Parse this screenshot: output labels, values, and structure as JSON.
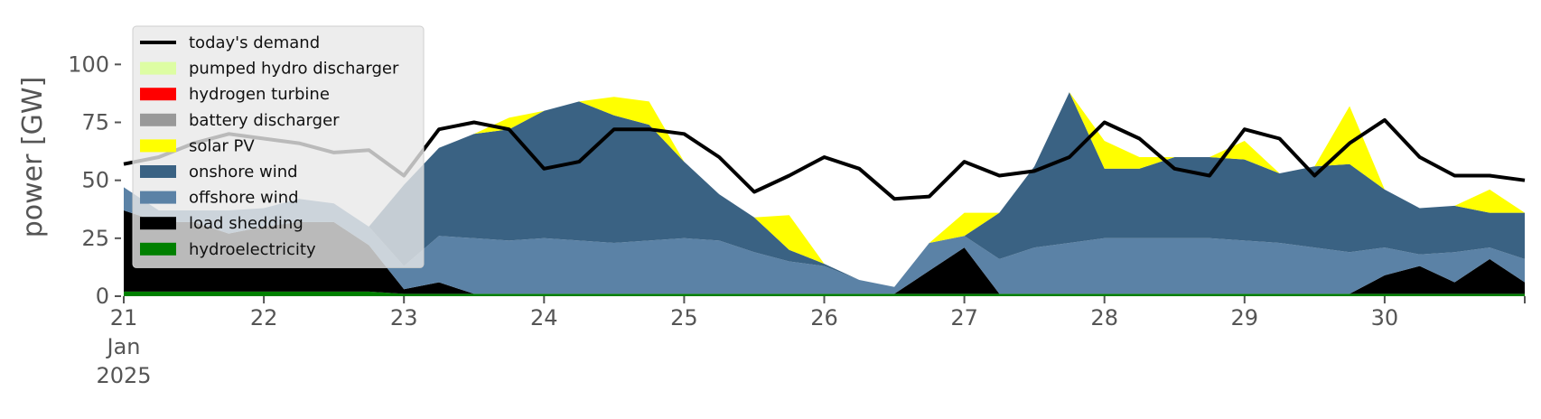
{
  "chart_data": {
    "type": "area",
    "stacked": true,
    "title": "",
    "xlabel": "",
    "ylabel": "power [GW]",
    "x_unit": "hours since 2025-01-21 00:00",
    "x": [
      0,
      6,
      12,
      18,
      24,
      30,
      36,
      42,
      48,
      54,
      60,
      66,
      72,
      78,
      84,
      90,
      96,
      102,
      108,
      114,
      120,
      126,
      132,
      138,
      144,
      150,
      156,
      162,
      168,
      174,
      180,
      186,
      192,
      198,
      204,
      210,
      216,
      222,
      228,
      234,
      240
    ],
    "xlim": [
      0,
      240
    ],
    "ylim": [
      0,
      120
    ],
    "x_ticks": [
      {
        "label": "21",
        "sub": [
          "Jan",
          "2025"
        ],
        "hour": 0
      },
      {
        "label": "22",
        "hour": 24
      },
      {
        "label": "23",
        "hour": 48
      },
      {
        "label": "24",
        "hour": 72
      },
      {
        "label": "25",
        "hour": 96
      },
      {
        "label": "26",
        "hour": 120
      },
      {
        "label": "27",
        "hour": 144
      },
      {
        "label": "28",
        "hour": 168
      },
      {
        "label": "29",
        "hour": 192
      },
      {
        "label": "30",
        "hour": 216
      }
    ],
    "y_ticks": [
      0,
      25,
      50,
      75,
      100
    ],
    "grid": false,
    "legend_position": "upper-left",
    "series": [
      {
        "name": "hydroelectricity",
        "color": "#008000",
        "values": [
          2,
          2,
          2,
          2,
          2,
          2,
          2,
          2,
          1,
          1,
          1,
          1,
          1,
          1,
          1,
          1,
          1,
          1,
          1,
          1,
          1,
          1,
          1,
          1,
          1,
          1,
          1,
          1,
          1,
          1,
          1,
          1,
          1,
          1,
          1,
          1,
          1,
          1,
          1,
          1,
          1
        ]
      },
      {
        "name": "load shedding",
        "color": "#000000",
        "values": [
          35,
          30,
          30,
          25,
          28,
          30,
          30,
          20,
          2,
          5,
          0,
          0,
          0,
          0,
          0,
          0,
          0,
          0,
          0,
          0,
          0,
          0,
          0,
          10,
          20,
          0,
          0,
          0,
          0,
          0,
          0,
          0,
          0,
          0,
          0,
          0,
          8,
          12,
          5,
          15,
          5
        ]
      },
      {
        "name": "offshore wind",
        "color": "#5b82a6",
        "values": [
          10,
          5,
          5,
          10,
          8,
          10,
          8,
          8,
          10,
          20,
          24,
          23,
          24,
          23,
          22,
          23,
          24,
          23,
          18,
          14,
          12,
          6,
          3,
          12,
          5,
          15,
          20,
          22,
          24,
          24,
          24,
          24,
          23,
          22,
          20,
          18,
          12,
          5,
          13,
          5,
          10
        ]
      },
      {
        "name": "onshore wind",
        "color": "#3a6283",
        "values": [
          0,
          0,
          0,
          0,
          0,
          0,
          0,
          0,
          35,
          38,
          45,
          48,
          55,
          60,
          55,
          50,
          33,
          20,
          15,
          5,
          1,
          0,
          0,
          0,
          0,
          20,
          35,
          65,
          30,
          30,
          35,
          35,
          35,
          30,
          35,
          38,
          25,
          20,
          20,
          15,
          20
        ]
      },
      {
        "name": "solar PV",
        "color": "#ffff00",
        "values": [
          0,
          0,
          0,
          0,
          0,
          0,
          0,
          0,
          0,
          0,
          0,
          5,
          0,
          0,
          8,
          10,
          0,
          0,
          0,
          15,
          0,
          0,
          0,
          0,
          10,
          0,
          0,
          0,
          12,
          5,
          0,
          0,
          8,
          0,
          0,
          25,
          0,
          0,
          0,
          10,
          0
        ]
      },
      {
        "name": "battery discharger",
        "color": "#999999",
        "values": [
          0,
          0,
          0,
          0,
          0,
          0,
          0,
          0,
          0,
          0,
          0,
          0,
          0,
          0,
          0,
          0,
          0,
          0,
          0,
          0,
          0,
          0,
          0,
          0,
          0,
          0,
          0,
          0,
          0,
          0,
          0,
          0,
          0,
          0,
          0,
          0,
          0,
          0,
          0,
          0,
          0
        ]
      },
      {
        "name": "hydrogen turbine",
        "color": "#ff0000",
        "values": [
          0,
          0,
          0,
          0,
          0,
          0,
          0,
          0,
          0,
          0,
          0,
          0,
          0,
          0,
          0,
          0,
          0,
          0,
          0,
          0,
          0,
          0,
          0,
          0,
          0,
          0,
          0,
          0,
          0,
          0,
          0,
          0,
          0,
          0,
          0,
          0,
          0,
          0,
          0,
          0,
          0
        ]
      },
      {
        "name": "pumped hydro discharger",
        "color": "#ddfda3",
        "values": [
          0,
          0,
          0,
          0,
          0,
          0,
          0,
          0,
          0,
          0,
          0,
          0,
          0,
          0,
          0,
          0,
          0,
          0,
          0,
          0,
          0,
          0,
          0,
          0,
          0,
          0,
          0,
          0,
          0,
          0,
          0,
          0,
          0,
          0,
          0,
          0,
          0,
          0,
          0,
          0,
          0
        ]
      }
    ],
    "demand": {
      "name": "today's demand",
      "color": "#000000",
      "values": [
        57,
        60,
        66,
        70,
        68,
        66,
        62,
        63,
        52,
        72,
        75,
        72,
        55,
        58,
        72,
        72,
        70,
        60,
        45,
        52,
        60,
        55,
        42,
        43,
        58,
        52,
        54,
        60,
        75,
        68,
        55,
        52,
        72,
        68,
        52,
        66,
        76,
        60,
        52,
        52,
        50
      ]
    },
    "legend": [
      {
        "label": "today's demand",
        "color": "#000000",
        "kind": "line"
      },
      {
        "label": "pumped hydro discharger",
        "color": "#ddfda3",
        "kind": "patch"
      },
      {
        "label": "hydrogen turbine",
        "color": "#ff0000",
        "kind": "patch"
      },
      {
        "label": "battery discharger",
        "color": "#999999",
        "kind": "patch"
      },
      {
        "label": "solar PV",
        "color": "#ffff00",
        "kind": "patch"
      },
      {
        "label": "onshore wind",
        "color": "#3a6283",
        "kind": "patch"
      },
      {
        "label": "offshore wind",
        "color": "#5b82a6",
        "kind": "patch"
      },
      {
        "label": "load shedding",
        "color": "#000000",
        "kind": "patch"
      },
      {
        "label": "hydroelectricity",
        "color": "#008000",
        "kind": "patch"
      }
    ]
  }
}
